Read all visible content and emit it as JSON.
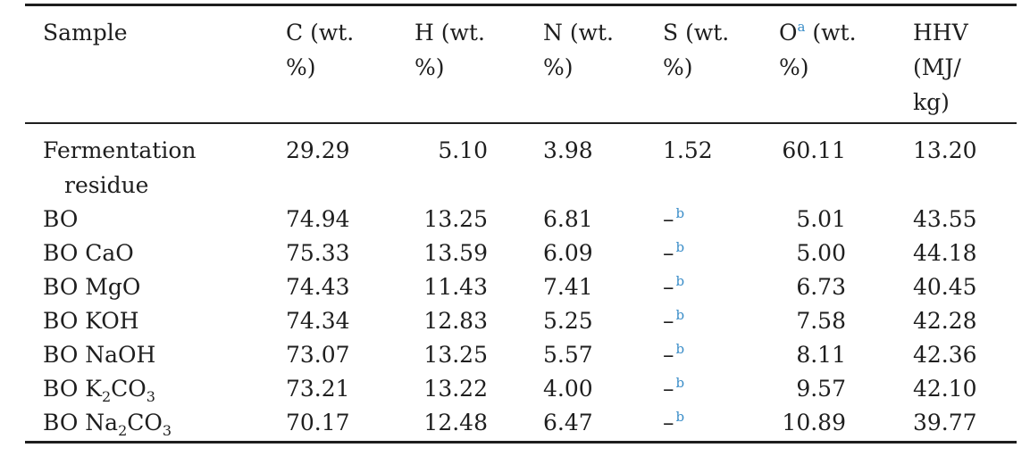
{
  "table": {
    "headers": [
      {
        "lines": [
          "Sample"
        ]
      },
      {
        "lines": [
          "C (wt.",
          "%)"
        ]
      },
      {
        "lines": [
          "H (wt.",
          "%)"
        ]
      },
      {
        "lines": [
          "N (wt.",
          "%)"
        ]
      },
      {
        "lines": [
          "S (wt.",
          "%)"
        ]
      },
      {
        "lines": [
          "O",
          " (wt.",
          "%)"
        ],
        "note": "a"
      },
      {
        "lines": [
          "HHV",
          "(MJ/",
          "kg)"
        ]
      }
    ],
    "rows": [
      {
        "sample": [
          "Fermentation",
          "residue"
        ],
        "c": "29.29",
        "h": "5.10",
        "n": "3.98",
        "s": "1.52",
        "o": "60.11",
        "hhv": "13.20"
      },
      {
        "sample": [
          "BO"
        ],
        "c": "74.94",
        "h": "13.25",
        "n": "6.81",
        "s": "–",
        "s_note": "b",
        "o": "5.01",
        "hhv": "43.55"
      },
      {
        "sample": [
          "BO CaO"
        ],
        "c": "75.33",
        "h": "13.59",
        "n": "6.09",
        "s": "–",
        "s_note": "b",
        "o": "5.00",
        "hhv": "44.18"
      },
      {
        "sample": [
          "BO MgO"
        ],
        "c": "74.43",
        "h": "11.43",
        "n": "7.41",
        "s": "–",
        "s_note": "b",
        "o": "6.73",
        "hhv": "40.45"
      },
      {
        "sample": [
          "BO KOH"
        ],
        "c": "74.34",
        "h": "12.83",
        "n": "5.25",
        "s": "–",
        "s_note": "b",
        "o": "7.58",
        "hhv": "42.28"
      },
      {
        "sample": [
          "BO NaOH"
        ],
        "c": "73.07",
        "h": "13.25",
        "n": "5.57",
        "s": "–",
        "s_note": "b",
        "o": "8.11",
        "hhv": "42.36"
      },
      {
        "sample": [
          "BO K",
          "2",
          "CO",
          "3"
        ],
        "c": "73.21",
        "h": "13.22",
        "n": "4.00",
        "s": "–",
        "s_note": "b",
        "o": "9.57",
        "hhv": "42.10"
      },
      {
        "sample": [
          "BO Na",
          "2",
          "CO",
          "3"
        ],
        "c": "70.17",
        "h": "12.48",
        "n": "6.47",
        "s": "–",
        "s_note": "b",
        "o": "10.89",
        "hhv": "39.77"
      }
    ]
  }
}
